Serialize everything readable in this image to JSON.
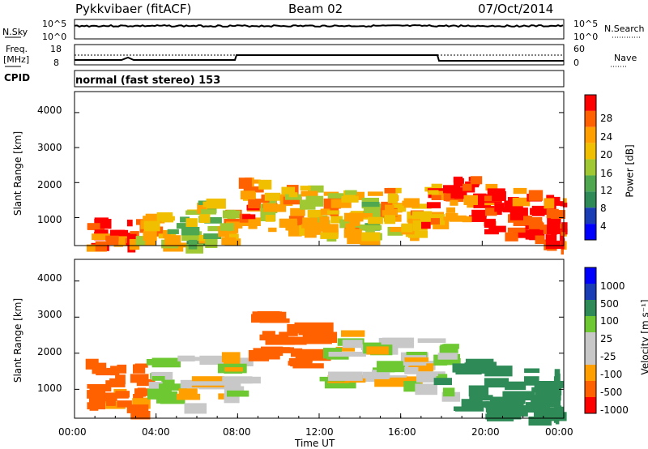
{
  "header": {
    "radar": "Pykkvibaer (fitACF)",
    "beam": "Beam 02",
    "date": "07/Oct/2014"
  },
  "nsky_panel": {
    "left_label": "N.Sky",
    "left_ticks": [
      "10^5",
      "10^0"
    ],
    "right_label": "N.Search",
    "right_ticks": [
      "10^5",
      "10^0"
    ]
  },
  "freq_panel": {
    "left_label_1": "Freq.",
    "left_label_2": "[MHz]",
    "left_ticks": [
      "18",
      "8"
    ],
    "right_label": "Nave",
    "right_ticks": [
      "60",
      "0"
    ]
  },
  "cpid_panel": {
    "label": "CPID",
    "text": "normal (fast stereo) 153"
  },
  "colors": {
    "power": [
      "#0000ff",
      "#1a3cb4",
      "#2e8b57",
      "#4fa84f",
      "#a0c832",
      "#f0c000",
      "#ffa000",
      "#ff6000",
      "#ff0000"
    ],
    "velocity": [
      "#ff0000",
      "#ff6000",
      "#ffa000",
      "#c8c8c8",
      "#c8c8c8",
      "#6ec832",
      "#2e8b57",
      "#1a3cb4",
      "#0000ff"
    ]
  },
  "chart_data": [
    {
      "type": "heatmap",
      "panel": "power",
      "ylabel": "Slant Range [km]",
      "xlabel": "",
      "y_ticks": [
        "1000",
        "2000",
        "3000",
        "4000"
      ],
      "ylim": [
        200,
        4600
      ],
      "colorbar_label": "Power [dB]",
      "colorbar_ticks": [
        "4",
        "8",
        "12",
        "16",
        "20",
        "24",
        "28"
      ],
      "series": [
        {
          "x": [
            0.5,
            1.5,
            2.5,
            3.0,
            4.0,
            5.0,
            6.0,
            7.0,
            8.0,
            9.0,
            10.0,
            11.0,
            12.0,
            13.0,
            14.0,
            15.0,
            16.0,
            17.0,
            18.0,
            19.0,
            20.0,
            21.0,
            22.0,
            23.0,
            23.8
          ],
          "y": [
            400,
            300,
            400,
            500,
            500,
            700,
            900,
            1100,
            1500,
            1400,
            1300,
            1300,
            1200,
            1200,
            1100,
            1200,
            1300,
            1400,
            1600,
            1600,
            1300,
            1200,
            1100,
            1000,
            900
          ],
          "values": [
            26,
            28,
            27,
            22,
            18,
            16,
            17,
            20,
            24,
            22,
            22,
            20,
            22,
            20,
            18,
            22,
            22,
            24,
            26,
            28,
            28,
            28,
            28,
            28,
            26
          ]
        }
      ]
    },
    {
      "type": "heatmap",
      "panel": "velocity",
      "ylabel": "Slant Range [km]",
      "xlabel": "Time UT",
      "y_ticks": [
        "1000",
        "2000",
        "3000",
        "4000"
      ],
      "ylim": [
        200,
        4600
      ],
      "x_ticks": [
        "00:00",
        "04:00",
        "08:00",
        "12:00",
        "16:00",
        "20:00",
        "00:00"
      ],
      "xlim": [
        0,
        24
      ],
      "colorbar_label": "Velocity [m s⁻¹]",
      "colorbar_ticks": [
        "1000",
        "500",
        "100",
        "25",
        "-25",
        "-100",
        "-500",
        "-1000"
      ],
      "series": [
        {
          "x": [
            0.5,
            1.5,
            2.5,
            3.5,
            5.0,
            7.0,
            8.5,
            10.0,
            12.0,
            14.0,
            16.0,
            17.5,
            18.5,
            20.0,
            22.0,
            23.5
          ],
          "y": [
            1300,
            1200,
            1100,
            1400,
            1300,
            1500,
            2500,
            2400,
            2000,
            1900,
            1800,
            1600,
            1200,
            1000,
            900,
            900
          ],
          "values": [
            -200,
            -150,
            -120,
            50,
            -20,
            0,
            -300,
            -250,
            0,
            0,
            0,
            50,
            150,
            200,
            220,
            250
          ]
        }
      ]
    }
  ]
}
